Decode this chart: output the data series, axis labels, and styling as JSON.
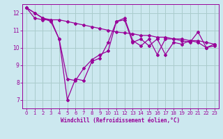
{
  "background_color": "#cce8ef",
  "grid_color": "#aacccc",
  "line_color": "#990099",
  "xlabel": "Windchill (Refroidissement éolien,°C)",
  "xlim": [
    -0.5,
    23.5
  ],
  "ylim": [
    6.5,
    12.5
  ],
  "yticks": [
    7,
    8,
    9,
    10,
    11,
    12
  ],
  "xticks": [
    0,
    1,
    2,
    3,
    4,
    5,
    6,
    7,
    8,
    9,
    10,
    11,
    12,
    13,
    14,
    15,
    16,
    17,
    18,
    19,
    20,
    21,
    22,
    23
  ],
  "series1_x": [
    0,
    1,
    2,
    3,
    4,
    5,
    6,
    7,
    8,
    9,
    10,
    11,
    12,
    13,
    14,
    15,
    16,
    17,
    18,
    19,
    20,
    21,
    22,
    23
  ],
  "series1_y": [
    12.3,
    12.0,
    11.7,
    11.5,
    10.5,
    8.2,
    8.1,
    8.8,
    9.3,
    9.6,
    9.8,
    11.5,
    11.7,
    10.4,
    10.1,
    10.5,
    9.6,
    10.5,
    10.5,
    10.4,
    10.3,
    10.9,
    10.0,
    10.2
  ],
  "series2_x": [
    0,
    1,
    2,
    3,
    4,
    5,
    6,
    7,
    8,
    9,
    10,
    11,
    12,
    13,
    14,
    15,
    16,
    17,
    18,
    19,
    20,
    21,
    22,
    23
  ],
  "series2_y": [
    12.3,
    11.7,
    11.6,
    11.6,
    10.5,
    7.0,
    8.2,
    8.1,
    9.2,
    9.4,
    10.3,
    11.5,
    11.6,
    10.3,
    10.5,
    10.1,
    10.5,
    9.6,
    10.3,
    10.2,
    10.4,
    10.3,
    10.0,
    10.1
  ],
  "series3_x": [
    0,
    1,
    2,
    3,
    4,
    5,
    6,
    7,
    8,
    9,
    10,
    11,
    12,
    13,
    14,
    15,
    16,
    17,
    18,
    19,
    20,
    21,
    22,
    23
  ],
  "series3_y": [
    12.3,
    12.0,
    11.7,
    11.6,
    11.6,
    11.5,
    11.4,
    11.3,
    11.2,
    11.1,
    11.0,
    10.9,
    10.85,
    10.8,
    10.7,
    10.7,
    10.6,
    10.6,
    10.5,
    10.5,
    10.4,
    10.4,
    10.3,
    10.2
  ],
  "marker": "D",
  "marker_size": 2.0,
  "linewidth": 0.9,
  "tick_fontsize": 5.0,
  "xlabel_fontsize": 5.5
}
